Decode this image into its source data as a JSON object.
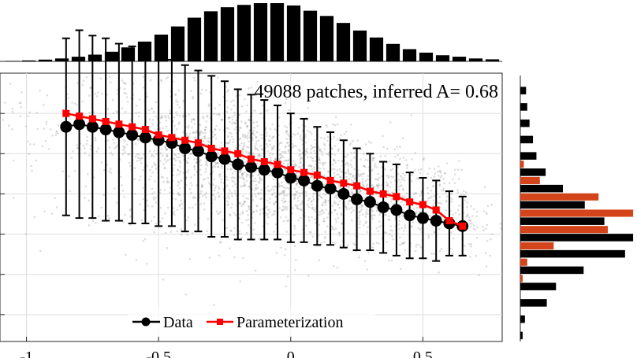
{
  "chart_data": [
    {
      "type": "scatter",
      "title": "",
      "annotation": "49088 patches, inferred A= 0.68",
      "xlabel": "",
      "ylabel": "",
      "xlim": [
        -1.1,
        0.8
      ],
      "ylim": [
        0.0,
        1.0
      ],
      "xticks": [
        -1,
        -0.5,
        0,
        0.5
      ],
      "xtick_labels": [
        "-1",
        "-0.5",
        "0",
        "0.5"
      ],
      "grid": true,
      "legend_position": "bottom-center",
      "colors": {
        "data": "#000000",
        "parameterization": "#ff0000",
        "scatter": "#9a9a9a"
      },
      "series": [
        {
          "name": "Data",
          "x": [
            -0.85,
            -0.8,
            -0.75,
            -0.7,
            -0.65,
            -0.6,
            -0.55,
            -0.5,
            -0.45,
            -0.4,
            -0.35,
            -0.3,
            -0.25,
            -0.2,
            -0.15,
            -0.1,
            -0.05,
            0.0,
            0.05,
            0.1,
            0.15,
            0.2,
            0.25,
            0.3,
            0.35,
            0.4,
            0.45,
            0.5,
            0.55,
            0.6,
            0.65
          ],
          "y": [
            0.8,
            0.81,
            0.8,
            0.79,
            0.78,
            0.77,
            0.76,
            0.75,
            0.74,
            0.72,
            0.71,
            0.69,
            0.68,
            0.66,
            0.65,
            0.64,
            0.63,
            0.61,
            0.6,
            0.58,
            0.57,
            0.55,
            0.53,
            0.52,
            0.5,
            0.49,
            0.47,
            0.46,
            0.45,
            0.44,
            0.43
          ],
          "error": [
            0.33,
            0.35,
            0.34,
            0.34,
            0.33,
            0.33,
            0.32,
            0.32,
            0.31,
            0.31,
            0.3,
            0.3,
            0.29,
            0.28,
            0.27,
            0.26,
            0.25,
            0.24,
            0.23,
            0.22,
            0.21,
            0.2,
            0.19,
            0.18,
            0.17,
            0.17,
            0.16,
            0.15,
            0.15,
            0.12,
            0.11
          ]
        },
        {
          "name": "Parameterization",
          "x": [
            -0.85,
            -0.8,
            -0.75,
            -0.7,
            -0.65,
            -0.6,
            -0.55,
            -0.5,
            -0.45,
            -0.4,
            -0.35,
            -0.3,
            -0.25,
            -0.2,
            -0.15,
            -0.1,
            -0.05,
            0.0,
            0.05,
            0.1,
            0.15,
            0.2,
            0.25,
            0.3,
            0.35,
            0.4,
            0.45,
            0.5,
            0.55,
            0.6,
            0.65
          ],
          "y": [
            0.85,
            0.84,
            0.83,
            0.82,
            0.81,
            0.8,
            0.79,
            0.77,
            0.76,
            0.75,
            0.74,
            0.72,
            0.71,
            0.7,
            0.68,
            0.67,
            0.66,
            0.64,
            0.63,
            0.62,
            0.6,
            0.59,
            0.58,
            0.56,
            0.55,
            0.54,
            0.52,
            0.51,
            0.49,
            0.45,
            0.43
          ]
        }
      ]
    },
    {
      "type": "bar",
      "orientation": "vertical",
      "position": "top",
      "values": [
        0.008,
        0.016,
        0.03,
        0.05,
        0.08,
        0.115,
        0.165,
        0.24,
        0.34,
        0.46,
        0.6,
        0.75,
        0.86,
        0.93,
        0.97,
        1.0,
        1.0,
        0.96,
        0.87,
        0.78,
        0.66,
        0.53,
        0.41,
        0.3,
        0.21,
        0.15,
        0.105,
        0.08,
        0.05,
        0.035
      ]
    },
    {
      "type": "bar",
      "orientation": "horizontal",
      "position": "right",
      "series": [
        {
          "name": "",
          "color": "#000000",
          "values": [
            0.05,
            0.06,
            0.08,
            0.11,
            0.14,
            0.22,
            0.37,
            0.56,
            0.73,
            0.98,
            0.91,
            0.55,
            0.31,
            0.23,
            0.04,
            0.02
          ]
        },
        {
          "name": "",
          "color": "#d4441a",
          "values": [
            0,
            0,
            0,
            0,
            0,
            0.03,
            0.17,
            0.68,
            0.98,
            0.76,
            0.29,
            0.06,
            0.02,
            0,
            0,
            0
          ]
        }
      ]
    }
  ],
  "legend": {
    "entries": [
      {
        "label": "Data",
        "color": "#000000"
      },
      {
        "label": "Parameterization",
        "color": "#ff0000"
      }
    ]
  }
}
